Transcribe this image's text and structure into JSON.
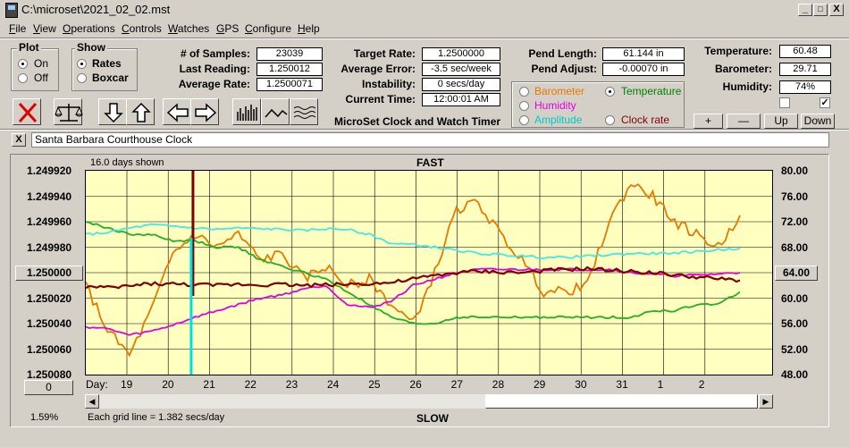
{
  "window": {
    "title": "C:\\microset\\2021_02_02.mst",
    "min": "_",
    "max": "□",
    "close": "X"
  },
  "menu": [
    "File",
    "View",
    "Operations",
    "Controls",
    "Watches",
    "GPS",
    "Configure",
    "Help"
  ],
  "plot_group": {
    "label": "Plot",
    "options": [
      "On",
      "Off"
    ],
    "selected": "On"
  },
  "show_group": {
    "label": "Show",
    "options": [
      "Rates",
      "Boxcar"
    ],
    "selected": "Rates"
  },
  "fields_left": [
    {
      "label": "# of Samples:",
      "value": "23039"
    },
    {
      "label": "Last Reading:",
      "value": "1.250012"
    },
    {
      "label": "Average Rate:",
      "value": "1.2500071"
    }
  ],
  "fields_mid": [
    {
      "label": "Target Rate:",
      "value": "1.2500000"
    },
    {
      "label": "Average Error:",
      "value": "-3.5 sec/week"
    },
    {
      "label": "Instability:",
      "value": "0 secs/day"
    },
    {
      "label": "Current Time:",
      "value": "12:00:01 AM"
    }
  ],
  "fields_pend": [
    {
      "label": "Pend Length:",
      "value": "61.144 in"
    },
    {
      "label": "Pend Adjust:",
      "value": "-0.00070 in"
    }
  ],
  "fields_env": [
    {
      "label": "Temperature:",
      "value": "60.48"
    },
    {
      "label": "Barometer:",
      "value": "29.71"
    },
    {
      "label": "Humidity:",
      "value": "74%"
    }
  ],
  "app_label": "MicroSet Clock and Watch Timer",
  "sensor_options": [
    {
      "label": "Barometer",
      "color": "#e87800",
      "selected": false
    },
    {
      "label": "Temperature",
      "color": "#008000",
      "selected": true
    },
    {
      "label": "Humidity",
      "color": "#e000e0",
      "selected": false
    },
    {
      "label": "Clock rate",
      "color": "#800000",
      "selected": false
    },
    {
      "label": "Amplitude",
      "color": "#00c8c8",
      "selected": false
    }
  ],
  "env_checks": [
    false,
    true
  ],
  "env_buttons": [
    "+",
    "—",
    "Up",
    "Down"
  ],
  "clock_name_close": "X",
  "clock_name": "Santa Barbara Courthouse Clock",
  "graph": {
    "days_shown": "16.0 days shown",
    "top_label": "FAST",
    "bottom_label": "SLOW",
    "grid_note": "Each grid line = 1.382 secs/day",
    "percent": "1.59%",
    "left_button": "1.250000",
    "right_button": "64.00",
    "zero_button": "0",
    "day_label": "Day:"
  },
  "chart_data": {
    "type": "line",
    "x_ticks": [
      "19",
      "20",
      "21",
      "22",
      "23",
      "24",
      "25",
      "26",
      "27",
      "28",
      "29",
      "30",
      "31",
      "1",
      "2"
    ],
    "y_left_ticks": [
      "1.249920",
      "1.249940",
      "1.249960",
      "1.249980",
      "1.250000",
      "1.250020",
      "1.250040",
      "1.250060",
      "1.250080"
    ],
    "y_right_ticks": [
      "80.00",
      "76.00",
      "72.00",
      "68.00",
      "64.00",
      "60.00",
      "56.00",
      "52.00",
      "48.00"
    ],
    "series": [
      {
        "name": "Barometer",
        "color": "#e87800",
        "values": [
          62,
          55,
          51,
          58,
          67,
          70,
          68,
          70,
          66,
          67,
          63,
          65,
          62,
          63,
          59,
          56,
          64,
          74,
          75,
          70,
          66,
          61,
          61,
          62,
          72,
          78,
          76,
          72,
          70,
          68,
          73
        ]
      },
      {
        "name": "Temperature",
        "color": "#20b020",
        "values": [
          72,
          71,
          70,
          70,
          69,
          69,
          68,
          68,
          66,
          65,
          64,
          63,
          61,
          59,
          57,
          56,
          56,
          57,
          57,
          57,
          57,
          57,
          57,
          57,
          57,
          57,
          58,
          58,
          59,
          59,
          61
        ]
      },
      {
        "name": "Humidity",
        "color": "#e000e0",
        "values": [
          55.5,
          55.2,
          54.2,
          54.8,
          55.8,
          57,
          58,
          59,
          60,
          60.5,
          61.5,
          62,
          59,
          58.5,
          59.5,
          62,
          63,
          64,
          64.5,
          64.5,
          64.5,
          64.5,
          64.5,
          64.5,
          64.5,
          64,
          63.8,
          63.5,
          63.6,
          63.8,
          64
        ]
      },
      {
        "name": "Clock rate",
        "color": "#800000",
        "values": [
          61.8,
          61.6,
          61.9,
          62.3,
          62.2,
          62.1,
          62.0,
          62.2,
          62.1,
          62.2,
          62.0,
          62.1,
          62.2,
          62.3,
          62.4,
          63.0,
          63.5,
          64.0,
          64.2,
          64.1,
          64.0,
          64.3,
          64.5,
          64.6,
          64.4,
          64.2,
          64.0,
          63.6,
          63.3,
          63.0,
          62.8
        ]
      },
      {
        "name": "Amplitude",
        "color": "#40e8e8",
        "values": [
          70,
          70.3,
          71,
          71.5,
          71.3,
          71.0,
          70.8,
          71.0,
          70.9,
          70.8,
          70.6,
          70.9,
          70.8,
          70.0,
          68.6,
          68.4,
          68.0,
          67.5,
          67.0,
          66.8,
          66.6,
          66.4,
          66.4,
          66.6,
          66.8,
          67.0,
          67.0,
          67.1,
          67.3,
          67.6,
          67.8
        ]
      }
    ],
    "ylim": [
      48,
      80
    ],
    "xlim": [
      18.2,
      33.6
    ]
  }
}
